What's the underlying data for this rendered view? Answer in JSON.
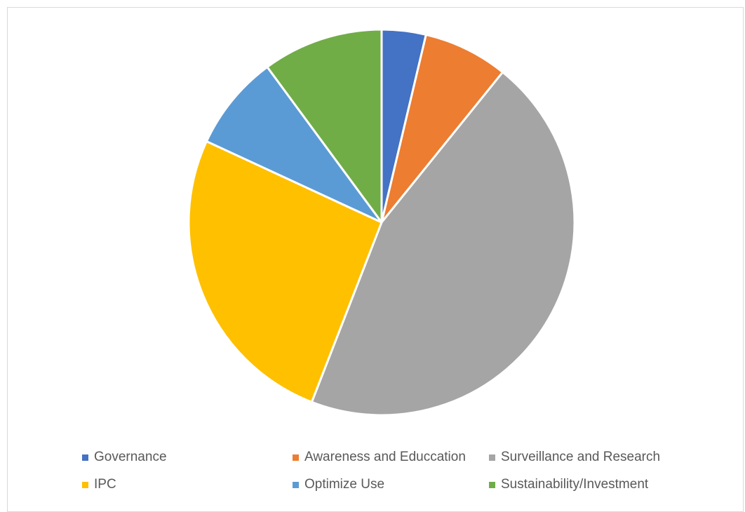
{
  "chart_data": {
    "type": "pie",
    "title": "",
    "categories": [
      "Governance",
      "Awareness and Educcation",
      "Surveillance and Research",
      "IPC",
      "Optimize Use",
      "Sustainability/Investment"
    ],
    "values": [
      3.7,
      7.1,
      45.1,
      26.0,
      8.0,
      10.1
    ],
    "colors": [
      "#4472c4",
      "#ed7d31",
      "#a5a5a5",
      "#ffc000",
      "#5b9bd5",
      "#70ad47"
    ],
    "start_angle": "12 o'clock",
    "direction": "clockwise",
    "slice_border": "#ffffff",
    "legend_position": "bottom"
  }
}
